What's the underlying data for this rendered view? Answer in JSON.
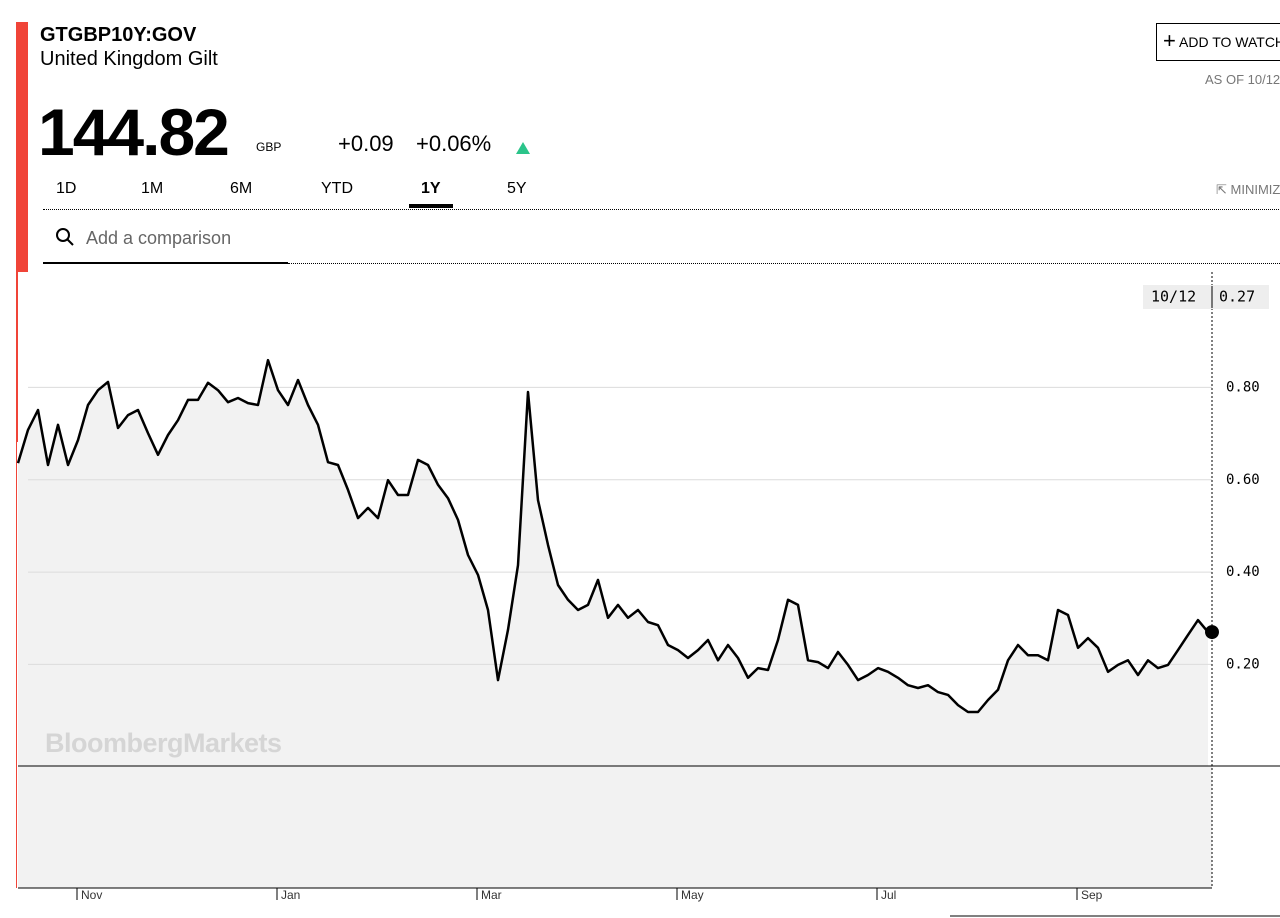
{
  "header": {
    "ticker": "GTGBP10Y:GOV",
    "name": "United Kingdom Gilt",
    "price": "144.82",
    "currency": "GBP",
    "change": "+0.09",
    "change_pct": "+0.06%",
    "watch_button": "ADD TO WATCHLIST",
    "as_of": "AS OF 10/12",
    "minimize": "MINIMIZE"
  },
  "tabs": [
    "1D",
    "1M",
    "6M",
    "YTD",
    "1Y",
    "5Y"
  ],
  "active_tab": "1Y",
  "search_placeholder": "Add a comparison",
  "watermark": "BloombergMarkets",
  "chart_data": {
    "type": "line",
    "color": "#000000",
    "fill": "#f2f2f2",
    "tooltip": {
      "date": "10/12",
      "value": 0.27
    },
    "categories": [
      null,
      null,
      null,
      null,
      null,
      null,
      "Nov",
      null,
      null,
      null,
      null,
      null,
      null,
      null,
      null,
      null,
      null,
      null,
      null,
      null,
      null,
      null,
      null,
      null,
      null,
      null,
      "Jan",
      null,
      null,
      null,
      null,
      null,
      null,
      null,
      null,
      null,
      null,
      null,
      null,
      null,
      null,
      null,
      null,
      null,
      null,
      null,
      "Mar",
      null,
      null,
      null,
      null,
      null,
      null,
      null,
      null,
      null,
      null,
      null,
      null,
      null,
      null,
      null,
      null,
      null,
      null,
      null,
      "May",
      null,
      null,
      null,
      null,
      null,
      null,
      null,
      null,
      null,
      null,
      null,
      null,
      null,
      null,
      null,
      null,
      null,
      null,
      null,
      "Jul",
      null,
      null,
      null,
      null,
      null,
      null,
      null,
      null,
      null,
      null,
      null,
      null,
      null,
      null,
      null,
      null,
      null,
      null,
      null,
      "Sep",
      null,
      null,
      null,
      null,
      null,
      null,
      null,
      null,
      null,
      null,
      null,
      null,
      null
    ],
    "values": [
      0.636,
      0.708,
      0.751,
      0.632,
      0.719,
      0.632,
      0.686,
      0.762,
      0.794,
      0.812,
      0.712,
      0.74,
      0.751,
      0.701,
      0.654,
      0.697,
      0.729,
      0.773,
      0.773,
      0.81,
      0.794,
      0.768,
      0.777,
      0.766,
      0.762,
      0.859,
      0.794,
      0.762,
      0.816,
      0.762,
      0.719,
      0.638,
      0.632,
      0.578,
      0.517,
      0.539,
      0.517,
      0.599,
      0.567,
      0.567,
      0.643,
      0.632,
      0.589,
      0.56,
      0.513,
      0.437,
      0.394,
      0.318,
      0.166,
      0.275,
      0.415,
      0.79,
      0.556,
      0.459,
      0.372,
      0.34,
      0.318,
      0.329,
      0.383,
      0.301,
      0.329,
      0.301,
      0.318,
      0.292,
      0.285,
      0.242,
      0.231,
      0.214,
      0.231,
      0.253,
      0.209,
      0.242,
      0.214,
      0.171,
      0.192,
      0.188,
      0.253,
      0.34,
      0.329,
      0.209,
      0.205,
      0.192,
      0.227,
      0.199,
      0.166,
      0.177,
      0.192,
      0.184,
      0.171,
      0.155,
      0.149,
      0.155,
      0.14,
      0.134,
      0.112,
      0.097,
      0.097,
      0.123,
      0.145,
      0.209,
      0.242,
      0.22,
      0.22,
      0.209,
      0.318,
      0.307,
      0.236,
      0.257,
      0.236,
      0.184,
      0.199,
      0.209,
      0.177,
      0.209,
      0.192,
      0.199,
      0.231,
      0.264,
      0.296,
      0.27
    ],
    "ylim": [
      -0.02,
      1.05
    ],
    "yticks": [
      {
        "value": 0.2,
        "label": "0.20"
      },
      {
        "value": 0.4,
        "label": "0.40"
      },
      {
        "value": 0.6,
        "label": "0.60"
      },
      {
        "value": 0.8,
        "label": "0.80"
      }
    ],
    "grid": true
  }
}
